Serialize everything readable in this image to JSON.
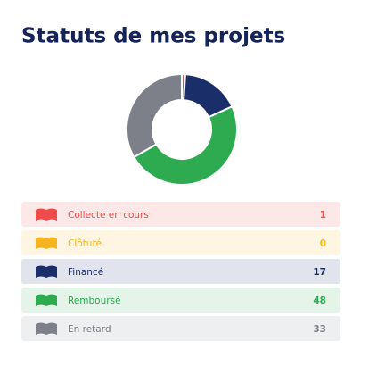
{
  "chart_data": {
    "type": "donut",
    "title": "Statuts de mes projets",
    "categories": [
      "Collecte en cours",
      "Clôturé",
      "Financé",
      "Remboursé",
      "En retard"
    ],
    "values": [
      1,
      0,
      17,
      48,
      33
    ],
    "colors": [
      "#f04b4b",
      "#f6b41f",
      "#1a2f6a",
      "#2eab50",
      "#7e8089"
    ]
  }
}
